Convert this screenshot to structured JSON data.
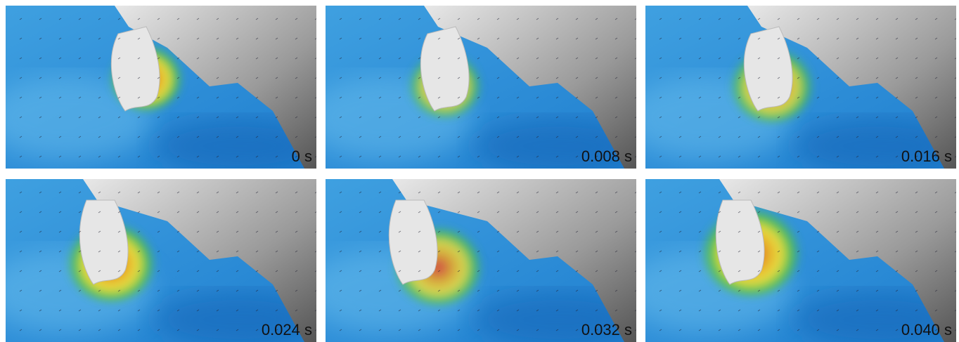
{
  "panels": [
    {
      "label": "0 s"
    },
    {
      "label": "0.008 s"
    },
    {
      "label": "0.016 s"
    },
    {
      "label": "0.024 s"
    },
    {
      "label": "0.032 s"
    },
    {
      "label": "0.040 s"
    }
  ]
}
